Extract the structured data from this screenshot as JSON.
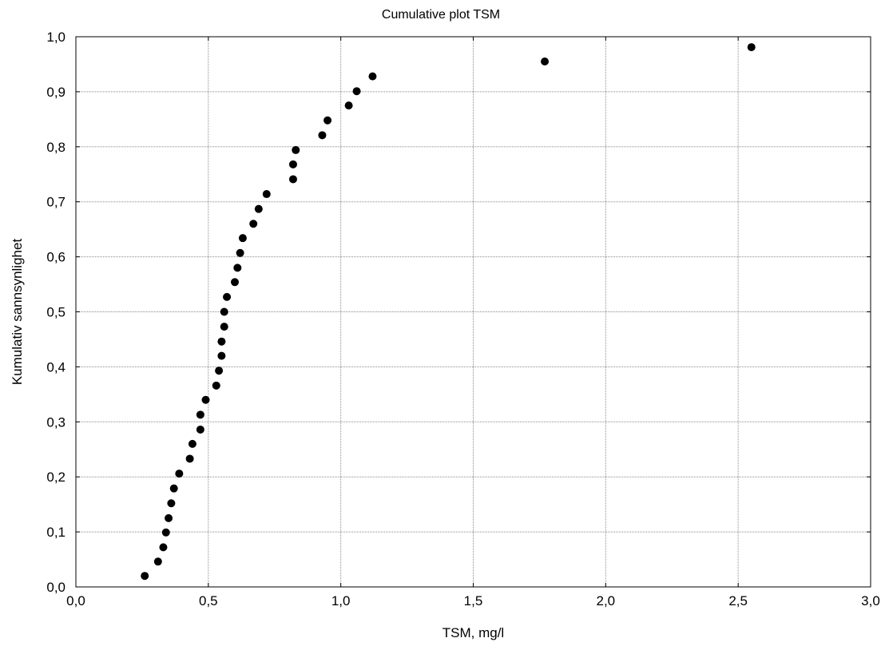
{
  "chart_data": {
    "type": "scatter",
    "title": "Cumulative plot TSM",
    "xlabel": "TSM, mg/l",
    "ylabel": "Kumulativ sannsynlighet",
    "xlim": [
      0,
      3
    ],
    "ylim": [
      0,
      1
    ],
    "grid": true,
    "x_ticks": [
      "0,0",
      "0,5",
      "1,0",
      "1,5",
      "2,0",
      "2,5",
      "3,0"
    ],
    "y_ticks": [
      "0,0",
      "0,1",
      "0,2",
      "0,3",
      "0,4",
      "0,5",
      "0,6",
      "0,7",
      "0,8",
      "0,9",
      "1,0"
    ],
    "x_tick_values": [
      0,
      0.5,
      1,
      1.5,
      2,
      2.5,
      3
    ],
    "y_tick_values": [
      0,
      0.1,
      0.2,
      0.3,
      0.4,
      0.5,
      0.6,
      0.7,
      0.8,
      0.9,
      1.0
    ],
    "points": [
      {
        "x": 0.26,
        "y": 0.02
      },
      {
        "x": 0.31,
        "y": 0.046
      },
      {
        "x": 0.33,
        "y": 0.072
      },
      {
        "x": 0.34,
        "y": 0.099
      },
      {
        "x": 0.35,
        "y": 0.125
      },
      {
        "x": 0.36,
        "y": 0.152
      },
      {
        "x": 0.37,
        "y": 0.179
      },
      {
        "x": 0.39,
        "y": 0.206
      },
      {
        "x": 0.43,
        "y": 0.233
      },
      {
        "x": 0.44,
        "y": 0.26
      },
      {
        "x": 0.47,
        "y": 0.286
      },
      {
        "x": 0.47,
        "y": 0.313
      },
      {
        "x": 0.49,
        "y": 0.34
      },
      {
        "x": 0.53,
        "y": 0.366
      },
      {
        "x": 0.54,
        "y": 0.393
      },
      {
        "x": 0.55,
        "y": 0.42
      },
      {
        "x": 0.55,
        "y": 0.446
      },
      {
        "x": 0.56,
        "y": 0.473
      },
      {
        "x": 0.56,
        "y": 0.5
      },
      {
        "x": 0.57,
        "y": 0.527
      },
      {
        "x": 0.6,
        "y": 0.554
      },
      {
        "x": 0.61,
        "y": 0.58
      },
      {
        "x": 0.62,
        "y": 0.607
      },
      {
        "x": 0.63,
        "y": 0.634
      },
      {
        "x": 0.67,
        "y": 0.66
      },
      {
        "x": 0.69,
        "y": 0.687
      },
      {
        "x": 0.72,
        "y": 0.714
      },
      {
        "x": 0.82,
        "y": 0.741
      },
      {
        "x": 0.82,
        "y": 0.768
      },
      {
        "x": 0.83,
        "y": 0.794
      },
      {
        "x": 0.93,
        "y": 0.821
      },
      {
        "x": 0.95,
        "y": 0.848
      },
      {
        "x": 1.03,
        "y": 0.875
      },
      {
        "x": 1.06,
        "y": 0.901
      },
      {
        "x": 1.12,
        "y": 0.928
      },
      {
        "x": 1.77,
        "y": 0.955
      },
      {
        "x": 2.55,
        "y": 0.981
      }
    ]
  }
}
